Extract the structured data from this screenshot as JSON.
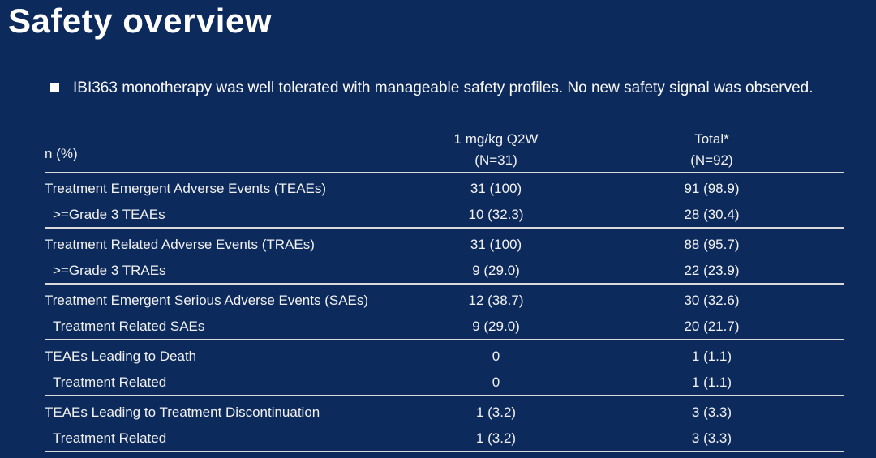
{
  "slide": {
    "title": "Safety overview",
    "bullet_text": "IBI363 monotherapy was well tolerated with manageable safety profiles. No new safety signal was observed."
  },
  "safety_table": {
    "row_header_label": "n (%)",
    "columns": [
      {
        "name": "1 mg/kg Q2W",
        "n": "(N=31)"
      },
      {
        "name": "Total*",
        "n": "(N=92)"
      }
    ],
    "groups": [
      {
        "rows": [
          {
            "label": "Treatment Emergent Adverse Events (TEAEs)",
            "values": [
              "31 (100)",
              "91 (98.9)"
            ]
          },
          {
            "label": ">=Grade 3 TEAEs",
            "values": [
              "10 (32.3)",
              "28 (30.4)"
            ]
          }
        ]
      },
      {
        "rows": [
          {
            "label": "Treatment Related Adverse Events (TRAEs)",
            "values": [
              "31 (100)",
              "88 (95.7)"
            ]
          },
          {
            "label": ">=Grade 3 TRAEs",
            "values": [
              "9 (29.0)",
              "22 (23.9)"
            ]
          }
        ]
      },
      {
        "rows": [
          {
            "label": "Treatment Emergent Serious Adverse Events (SAEs)",
            "values": [
              "12 (38.7)",
              "30 (32.6)"
            ]
          },
          {
            "label": "Treatment Related SAEs",
            "values": [
              "9 (29.0)",
              "20 (21.7)"
            ]
          }
        ]
      },
      {
        "rows": [
          {
            "label": "TEAEs Leading to Death",
            "values": [
              "0",
              "1 (1.1)"
            ]
          },
          {
            "label": "Treatment Related",
            "values": [
              "0",
              "1 (1.1)"
            ]
          }
        ]
      },
      {
        "rows": [
          {
            "label": "TEAEs Leading to Treatment Discontinuation",
            "values": [
              "1 (3.2)",
              "3 (3.3)"
            ]
          },
          {
            "label": "Treatment Related",
            "values": [
              "1 (3.2)",
              "3 (3.3)"
            ]
          }
        ]
      }
    ]
  },
  "colors": {
    "background": "#0d2a5c",
    "title_text": "#ffffff",
    "body_text": "#f2f2f2",
    "table_line": "#d9d9d9"
  }
}
